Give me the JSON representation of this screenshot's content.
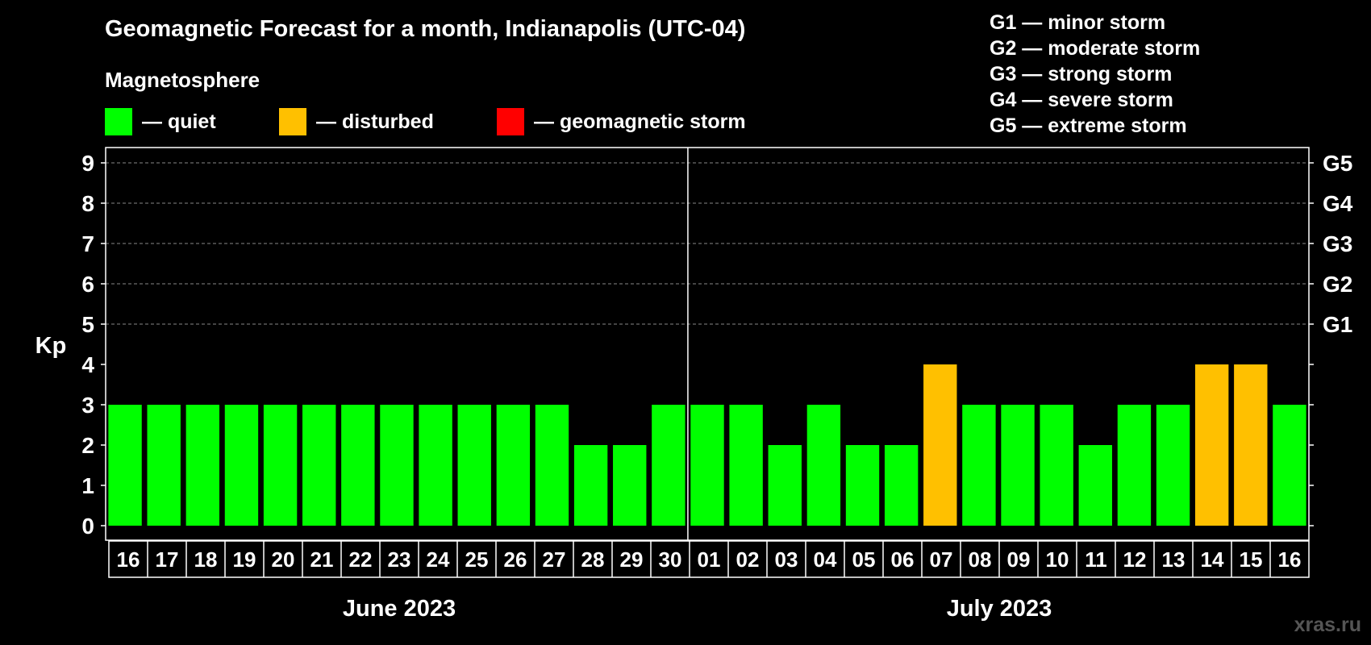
{
  "header": {
    "title": "Geomagnetic Forecast for a month, Indianapolis (UTC-04)",
    "subtitle": "Magnetosphere"
  },
  "legend": [
    {
      "label": "— quiet",
      "color": "#00ff00"
    },
    {
      "label": "— disturbed",
      "color": "#ffc000"
    },
    {
      "label": "— geomagnetic storm",
      "color": "#ff0000"
    }
  ],
  "storm_scale": [
    "G1 — minor storm",
    "G2 — moderate storm",
    "G3 — strong storm",
    "G4 — severe storm",
    "G5 — extreme storm"
  ],
  "watermark": "xras.ru",
  "chart_data": {
    "type": "bar",
    "ylabel": "Kp",
    "ylim": [
      0,
      9
    ],
    "yticks": [
      0,
      1,
      2,
      3,
      4,
      5,
      6,
      7,
      8,
      9
    ],
    "right_axis_labels": [
      {
        "kp": 5,
        "label": "G1"
      },
      {
        "kp": 6,
        "label": "G2"
      },
      {
        "kp": 7,
        "label": "G3"
      },
      {
        "kp": 8,
        "label": "G4"
      },
      {
        "kp": 9,
        "label": "G5"
      }
    ],
    "grid": "dashed horizontal at Kp 5-9",
    "categories": [
      "16",
      "17",
      "18",
      "19",
      "20",
      "21",
      "22",
      "23",
      "24",
      "25",
      "26",
      "27",
      "28",
      "29",
      "30",
      "01",
      "02",
      "03",
      "04",
      "05",
      "06",
      "07",
      "08",
      "09",
      "10",
      "11",
      "12",
      "13",
      "14",
      "15",
      "16"
    ],
    "values": [
      3,
      3,
      3,
      3,
      3,
      3,
      3,
      3,
      3,
      3,
      3,
      3,
      2,
      2,
      3,
      3,
      3,
      2,
      3,
      2,
      2,
      4,
      3,
      3,
      3,
      2,
      3,
      3,
      4,
      4,
      3
    ],
    "status": [
      "quiet",
      "quiet",
      "quiet",
      "quiet",
      "quiet",
      "quiet",
      "quiet",
      "quiet",
      "quiet",
      "quiet",
      "quiet",
      "quiet",
      "quiet",
      "quiet",
      "quiet",
      "quiet",
      "quiet",
      "quiet",
      "quiet",
      "quiet",
      "quiet",
      "disturbed",
      "quiet",
      "quiet",
      "quiet",
      "quiet",
      "quiet",
      "quiet",
      "disturbed",
      "disturbed",
      "quiet"
    ],
    "months": [
      {
        "label": "June 2023",
        "count": 15
      },
      {
        "label": "July 2023",
        "count": 16
      }
    ]
  }
}
